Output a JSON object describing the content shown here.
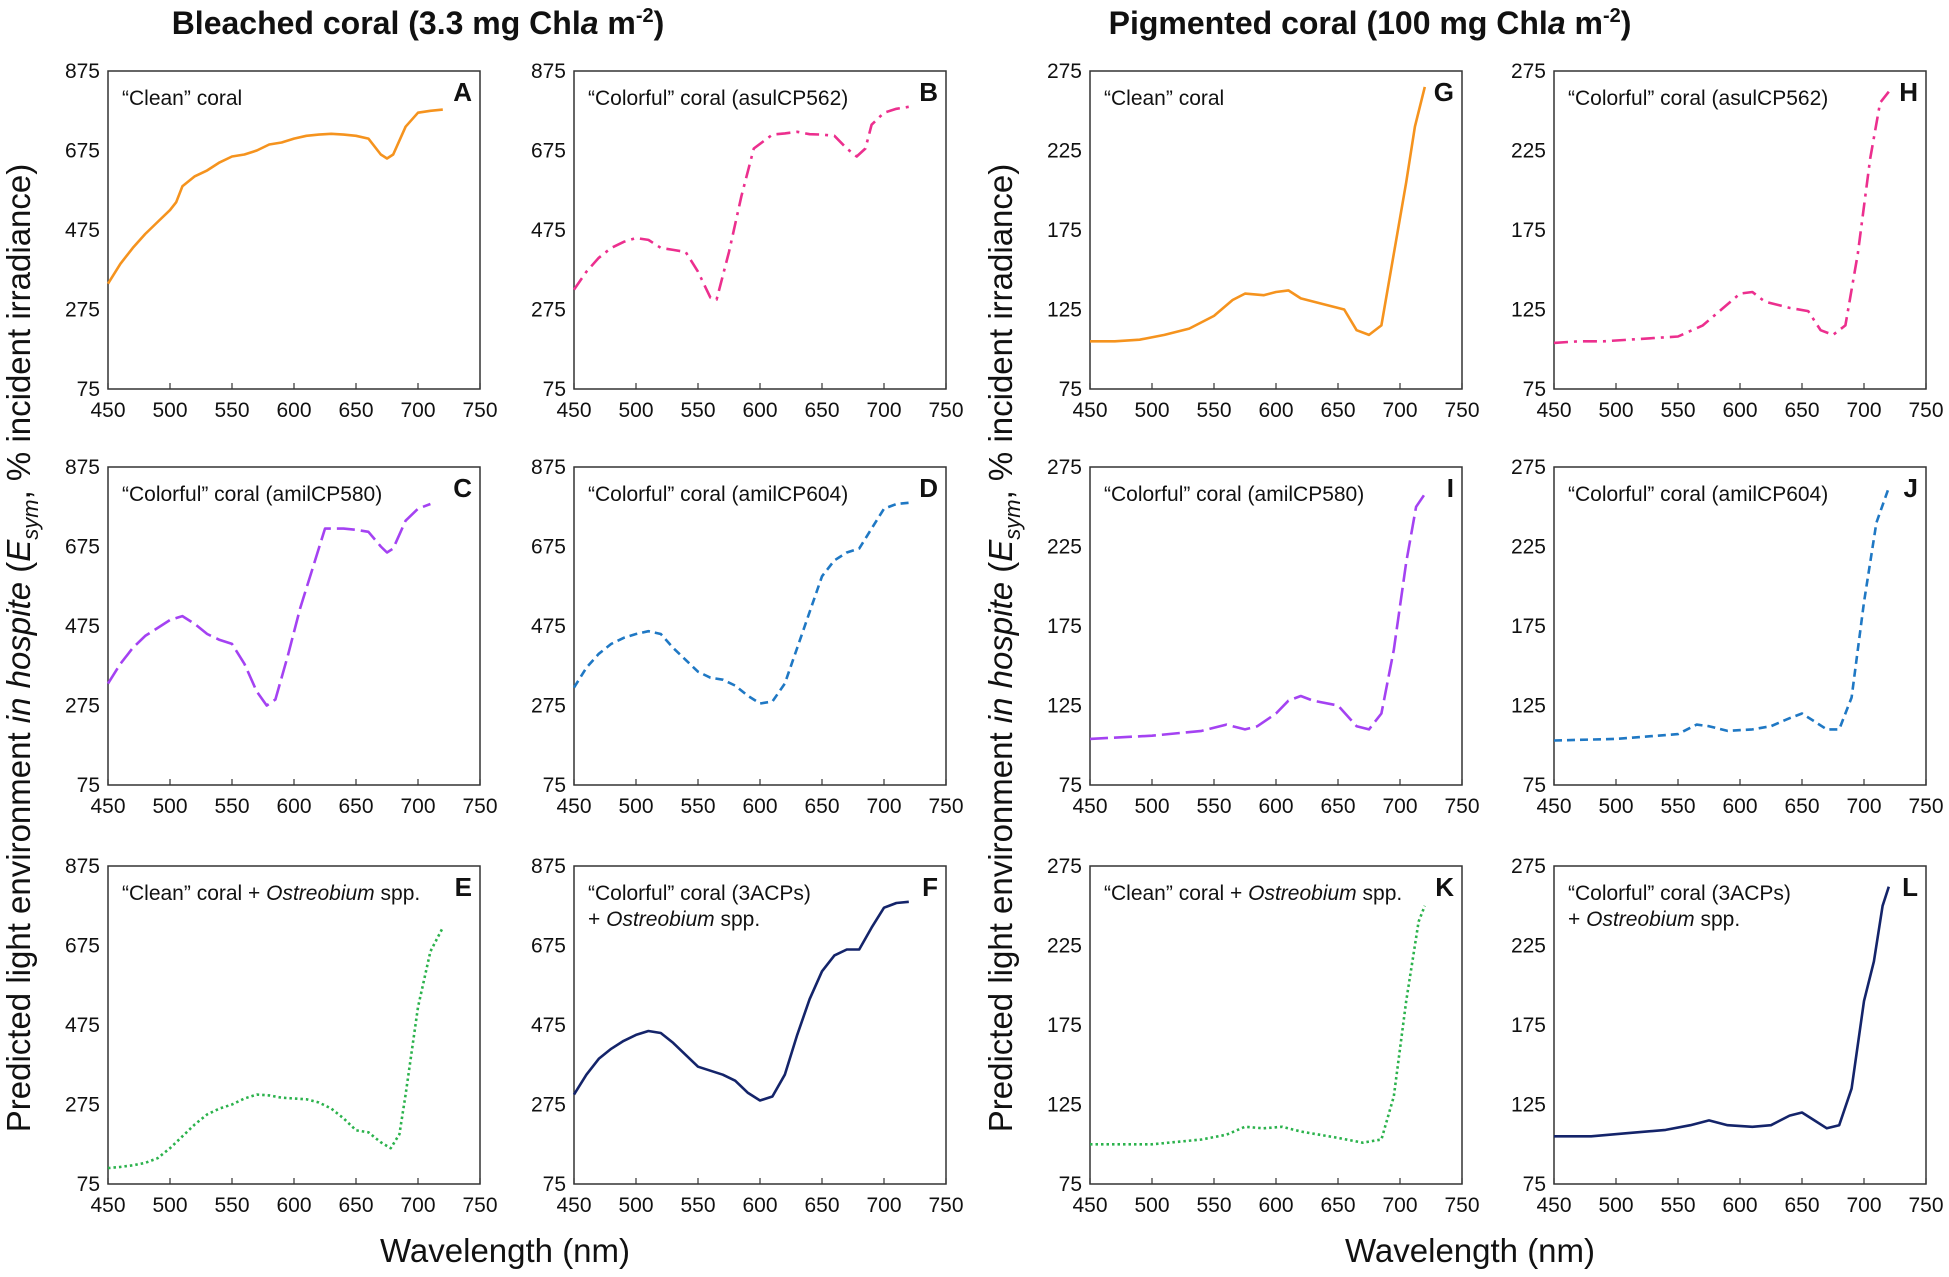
{
  "titles": {
    "left": [
      "Bleached coral (3.3 mg Chl",
      "a",
      " m",
      "-2",
      ")"
    ],
    "right": [
      "Pigmented coral (100 mg Chl",
      "a",
      " m",
      "-2",
      ")"
    ]
  },
  "ylabel": [
    "Predicted light environment ",
    "in hospite",
    " (",
    "E",
    "sym",
    ", % incident irradiance)"
  ],
  "xlabel": "Wavelength (nm)",
  "colors": {
    "orange": "#f5931e",
    "pink": "#ec2f8e",
    "purple": "#a442f2",
    "blue": "#1f78c4",
    "green": "#2bb24c",
    "navy": "#14246a"
  },
  "chart_data": [
    {
      "type": "line",
      "panel": "A",
      "label": [
        "“Clean” coral"
      ],
      "color": "orange",
      "style": "solid",
      "xlim": [
        450,
        750
      ],
      "ylim": [
        75,
        875
      ],
      "xticks": [
        450,
        500,
        550,
        600,
        650,
        700,
        750
      ],
      "yticks": [
        75,
        275,
        475,
        675,
        875
      ],
      "x": [
        450,
        460,
        470,
        480,
        490,
        500,
        505,
        510,
        520,
        530,
        540,
        550,
        560,
        570,
        580,
        590,
        600,
        610,
        620,
        630,
        640,
        650,
        660,
        670,
        675,
        680,
        690,
        700,
        710,
        720
      ],
      "y": [
        340,
        390,
        430,
        465,
        495,
        525,
        545,
        585,
        610,
        625,
        645,
        660,
        665,
        675,
        690,
        695,
        705,
        712,
        715,
        717,
        715,
        712,
        705,
        665,
        655,
        665,
        735,
        770,
        775,
        778
      ]
    },
    {
      "type": "line",
      "panel": "B",
      "label": [
        "“Colorful” coral (asulCP562)"
      ],
      "color": "pink",
      "style": "dashdot",
      "xlim": [
        450,
        750
      ],
      "ylim": [
        75,
        875
      ],
      "xticks": [
        450,
        500,
        550,
        600,
        650,
        700,
        750
      ],
      "yticks": [
        75,
        275,
        475,
        675,
        875
      ],
      "x": [
        450,
        460,
        470,
        480,
        490,
        500,
        510,
        520,
        530,
        540,
        550,
        560,
        565,
        575,
        585,
        595,
        610,
        620,
        630,
        640,
        650,
        660,
        670,
        678,
        685,
        690,
        700,
        710,
        720
      ],
      "y": [
        325,
        370,
        405,
        430,
        445,
        455,
        450,
        430,
        425,
        420,
        370,
        305,
        300,
        420,
        560,
        680,
        715,
        718,
        722,
        716,
        715,
        712,
        680,
        660,
        680,
        740,
        770,
        780,
        785
      ]
    },
    {
      "type": "line",
      "panel": "C",
      "label": [
        "“Colorful” coral (amilCP580)"
      ],
      "color": "purple",
      "style": "longdash",
      "xlim": [
        450,
        750
      ],
      "ylim": [
        75,
        875
      ],
      "xticks": [
        450,
        500,
        550,
        600,
        650,
        700,
        750
      ],
      "yticks": [
        75,
        275,
        475,
        675,
        875
      ],
      "x": [
        450,
        460,
        470,
        480,
        490,
        500,
        510,
        520,
        530,
        540,
        550,
        560,
        570,
        578,
        585,
        595,
        605,
        615,
        625,
        640,
        650,
        660,
        670,
        675,
        680,
        690,
        700,
        710
      ],
      "y": [
        330,
        380,
        420,
        450,
        470,
        490,
        500,
        480,
        455,
        440,
        430,
        380,
        310,
        275,
        290,
        400,
        520,
        620,
        720,
        720,
        717,
        712,
        675,
        660,
        670,
        740,
        770,
        782
      ]
    },
    {
      "type": "line",
      "panel": "D",
      "label": [
        "“Colorful” coral (amilCP604)"
      ],
      "color": "blue",
      "style": "dashed",
      "xlim": [
        450,
        750
      ],
      "ylim": [
        75,
        875
      ],
      "xticks": [
        450,
        500,
        550,
        600,
        650,
        700,
        750
      ],
      "yticks": [
        75,
        275,
        475,
        675,
        875
      ],
      "x": [
        450,
        460,
        470,
        480,
        490,
        500,
        510,
        520,
        530,
        540,
        550,
        560,
        570,
        580,
        590,
        600,
        610,
        620,
        630,
        640,
        650,
        660,
        670,
        680,
        690,
        700,
        710,
        720
      ],
      "y": [
        320,
        370,
        405,
        430,
        445,
        455,
        462,
        455,
        420,
        390,
        360,
        345,
        340,
        325,
        300,
        280,
        285,
        330,
        420,
        510,
        600,
        640,
        660,
        670,
        720,
        770,
        782,
        785
      ]
    },
    {
      "type": "line",
      "panel": "E",
      "label": [
        "“Clean” coral + ",
        "Ostreobium",
        " spp."
      ],
      "color": "green",
      "style": "dotted",
      "xlim": [
        450,
        750
      ],
      "ylim": [
        75,
        875
      ],
      "xticks": [
        450,
        500,
        550,
        600,
        650,
        700,
        750
      ],
      "yticks": [
        75,
        275,
        475,
        675,
        875
      ],
      "x": [
        450,
        460,
        470,
        480,
        490,
        500,
        510,
        520,
        530,
        540,
        550,
        560,
        570,
        580,
        590,
        600,
        610,
        620,
        630,
        640,
        650,
        660,
        670,
        678,
        685,
        690,
        700,
        710,
        720
      ],
      "y": [
        115,
        118,
        122,
        128,
        140,
        165,
        195,
        225,
        250,
        265,
        275,
        290,
        300,
        298,
        292,
        290,
        288,
        280,
        265,
        240,
        210,
        205,
        180,
        165,
        200,
        300,
        520,
        660,
        720
      ]
    },
    {
      "type": "line",
      "panel": "F",
      "label": [
        "“Colorful” coral (3ACPs)",
        "+ ",
        "Ostreobium",
        " spp."
      ],
      "color": "navy",
      "style": "solid",
      "xlim": [
        450,
        750
      ],
      "ylim": [
        75,
        875
      ],
      "xticks": [
        450,
        500,
        550,
        600,
        650,
        700,
        750
      ],
      "yticks": [
        75,
        275,
        475,
        675,
        875
      ],
      "x": [
        450,
        460,
        470,
        480,
        490,
        500,
        510,
        520,
        530,
        540,
        550,
        560,
        570,
        580,
        590,
        600,
        610,
        620,
        630,
        640,
        650,
        660,
        670,
        680,
        690,
        700,
        710,
        720
      ],
      "y": [
        300,
        350,
        390,
        415,
        435,
        450,
        460,
        455,
        430,
        400,
        370,
        360,
        350,
        335,
        305,
        285,
        295,
        350,
        450,
        540,
        610,
        650,
        665,
        665,
        720,
        770,
        782,
        785
      ]
    },
    {
      "type": "line",
      "panel": "G",
      "label": [
        "“Clean” coral"
      ],
      "color": "orange",
      "style": "solid",
      "xlim": [
        450,
        750
      ],
      "ylim": [
        75,
        275
      ],
      "xticks": [
        450,
        500,
        550,
        600,
        650,
        700,
        750
      ],
      "yticks": [
        75,
        125,
        175,
        225,
        275
      ],
      "x": [
        450,
        470,
        490,
        510,
        530,
        550,
        565,
        575,
        590,
        600,
        610,
        620,
        640,
        655,
        665,
        675,
        685,
        695,
        705,
        712,
        720
      ],
      "y": [
        105,
        105,
        106,
        109,
        113,
        121,
        131,
        135,
        134,
        136,
        137,
        132,
        128,
        125,
        112,
        109,
        115,
        160,
        205,
        240,
        265
      ]
    },
    {
      "type": "line",
      "panel": "H",
      "label": [
        "“Colorful” coral (asulCP562)"
      ],
      "color": "pink",
      "style": "dashdot",
      "xlim": [
        450,
        750
      ],
      "ylim": [
        75,
        275
      ],
      "xticks": [
        450,
        500,
        550,
        600,
        650,
        700,
        750
      ],
      "yticks": [
        75,
        125,
        175,
        225,
        275
      ],
      "x": [
        450,
        470,
        490,
        510,
        530,
        550,
        570,
        585,
        600,
        610,
        620,
        640,
        655,
        665,
        675,
        685,
        695,
        705,
        713,
        720
      ],
      "y": [
        104,
        105,
        105,
        106,
        107,
        108,
        115,
        125,
        135,
        136,
        130,
        126,
        124,
        112,
        109,
        115,
        160,
        220,
        255,
        262
      ]
    },
    {
      "type": "line",
      "panel": "I",
      "label": [
        "“Colorful” coral (amilCP580)"
      ],
      "color": "purple",
      "style": "longdash",
      "xlim": [
        450,
        750
      ],
      "ylim": [
        75,
        275
      ],
      "xticks": [
        450,
        500,
        550,
        600,
        650,
        700,
        750
      ],
      "yticks": [
        75,
        125,
        175,
        225,
        275
      ],
      "x": [
        450,
        500,
        540,
        560,
        575,
        585,
        600,
        610,
        620,
        630,
        650,
        665,
        675,
        685,
        695,
        705,
        713,
        720
      ],
      "y": [
        104,
        106,
        109,
        113,
        110,
        112,
        120,
        128,
        131,
        128,
        125,
        112,
        110,
        120,
        160,
        215,
        250,
        258
      ]
    },
    {
      "type": "line",
      "panel": "J",
      "label": [
        "“Colorful” coral (amilCP604)"
      ],
      "color": "blue",
      "style": "dashed",
      "xlim": [
        450,
        750
      ],
      "ylim": [
        75,
        275
      ],
      "xticks": [
        450,
        500,
        550,
        600,
        650,
        700,
        750
      ],
      "yticks": [
        75,
        125,
        175,
        225,
        275
      ],
      "x": [
        450,
        500,
        550,
        565,
        575,
        590,
        610,
        625,
        640,
        650,
        660,
        670,
        680,
        690,
        700,
        710,
        720
      ],
      "y": [
        103,
        104,
        107,
        113,
        112,
        109,
        110,
        112,
        117,
        120,
        115,
        110,
        110,
        130,
        190,
        240,
        262
      ]
    },
    {
      "type": "line",
      "panel": "K",
      "label": [
        "“Clean” coral + ",
        "Ostreobium",
        " spp."
      ],
      "color": "green",
      "style": "dotted",
      "xlim": [
        450,
        750
      ],
      "ylim": [
        75,
        275
      ],
      "xticks": [
        450,
        500,
        550,
        600,
        650,
        700,
        750
      ],
      "yticks": [
        75,
        125,
        175,
        225,
        275
      ],
      "x": [
        450,
        500,
        540,
        560,
        575,
        590,
        605,
        620,
        650,
        670,
        685,
        695,
        705,
        715,
        720
      ],
      "y": [
        100,
        100,
        103,
        106,
        111,
        110,
        111,
        108,
        104,
        101,
        103,
        130,
        190,
        240,
        250
      ]
    },
    {
      "type": "line",
      "panel": "L",
      "label": [
        "“Colorful” coral (3ACPs)",
        "+ ",
        "Ostreobium",
        " spp."
      ],
      "color": "navy",
      "style": "solid",
      "xlim": [
        450,
        750
      ],
      "ylim": [
        75,
        275
      ],
      "xticks": [
        450,
        500,
        550,
        600,
        650,
        700,
        750
      ],
      "yticks": [
        75,
        125,
        175,
        225,
        275
      ],
      "x": [
        450,
        480,
        510,
        540,
        560,
        575,
        590,
        610,
        625,
        640,
        650,
        660,
        670,
        680,
        690,
        700,
        708,
        715,
        720
      ],
      "y": [
        105,
        105,
        107,
        109,
        112,
        115,
        112,
        111,
        112,
        118,
        120,
        115,
        110,
        112,
        135,
        190,
        215,
        250,
        262
      ]
    }
  ]
}
